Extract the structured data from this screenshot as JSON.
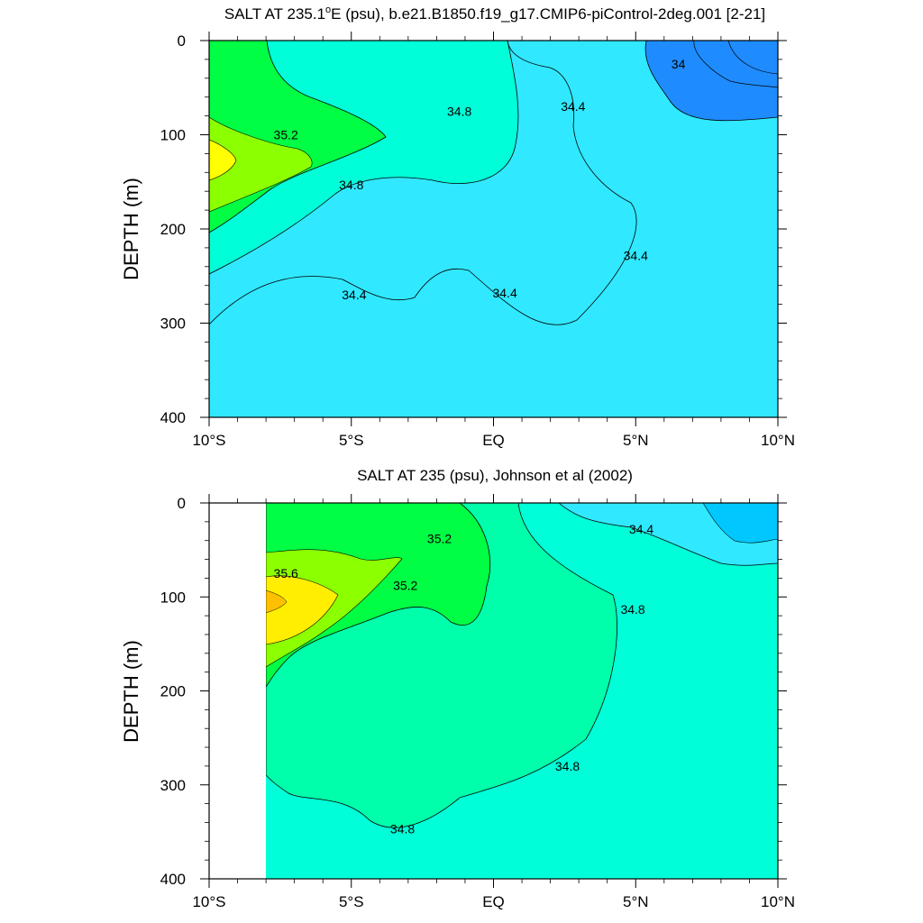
{
  "chart_data": [
    {
      "type": "contour",
      "title": "SALT AT 235.1°E (psu), b.e21.B1850.f19_g17.CMIP6-piControl-2deg.001 [2-21]",
      "title_main": "SALT AT 235.1",
      "title_degree": "o",
      "title_rest": "E (psu), b.e21.B1850.f19_g17.CMIP6-piControl-2deg.001 [2-21]",
      "ylabel": "DEPTH (m)",
      "xlabel": "",
      "xlim": [
        -10,
        10
      ],
      "ylim": [
        0,
        400
      ],
      "y_inverted": true,
      "xticks": [
        -10,
        -5,
        0,
        5,
        10
      ],
      "xtick_labels": [
        "10°S",
        "5°S",
        "EQ",
        "5°N",
        "10°N"
      ],
      "yticks": [
        0,
        100,
        200,
        300,
        400
      ],
      "ytick_labels": [
        "0",
        "100",
        "200",
        "300",
        "400"
      ],
      "data_start_lat": -10,
      "levels": [
        {
          "value": 34.0,
          "color": "#1e8cff"
        },
        {
          "value": 34.4,
          "color": "#30e8ff"
        },
        {
          "value": 34.8,
          "color": "#00ffd8"
        },
        {
          "value": 35.2,
          "color": "#00ff44"
        }
      ],
      "contour_labels": [
        {
          "text": "35.2",
          "lat": -7.3,
          "depth": 100
        },
        {
          "text": "34.8",
          "lat": -1.2,
          "depth": 75
        },
        {
          "text": "34.8",
          "lat": -5.0,
          "depth": 153
        },
        {
          "text": "34.4",
          "lat": 2.8,
          "depth": 70
        },
        {
          "text": "34.4",
          "lat": 5.0,
          "depth": 228
        },
        {
          "text": "34.4",
          "lat": -4.9,
          "depth": 270
        },
        {
          "text": "34.4",
          "lat": 0.4,
          "depth": 268
        },
        {
          "text": "34",
          "lat": 6.5,
          "depth": 25
        }
      ]
    },
    {
      "type": "contour",
      "title": "SALT AT 235 (psu), Johnson et al (2002)",
      "ylabel": "DEPTH (m)",
      "xlabel": "",
      "xlim": [
        -10,
        10
      ],
      "ylim": [
        0,
        400
      ],
      "y_inverted": true,
      "xticks": [
        -10,
        -5,
        0,
        5,
        10
      ],
      "xtick_labels": [
        "10°S",
        "5°S",
        "EQ",
        "5°N",
        "10°N"
      ],
      "yticks": [
        0,
        100,
        200,
        300,
        400
      ],
      "ytick_labels": [
        "0",
        "100",
        "200",
        "300",
        "400"
      ],
      "data_start_lat": -8,
      "levels": [
        {
          "value": 34.4,
          "color": "#30e8ff"
        },
        {
          "value": 34.8,
          "color": "#00ffd8"
        },
        {
          "value": 35.2,
          "color": "#00ff44"
        },
        {
          "value": 35.6,
          "color": "#ffff00"
        }
      ],
      "contour_labels": [
        {
          "text": "35.2",
          "lat": -1.9,
          "depth": 38
        },
        {
          "text": "35.6",
          "lat": -7.3,
          "depth": 75
        },
        {
          "text": "35.2",
          "lat": -3.1,
          "depth": 88
        },
        {
          "text": "34.4",
          "lat": 5.2,
          "depth": 28
        },
        {
          "text": "34.8",
          "lat": 4.9,
          "depth": 113
        },
        {
          "text": "34.8",
          "lat": 2.6,
          "depth": 280
        },
        {
          "text": "34.8",
          "lat": -3.2,
          "depth": 347
        }
      ]
    }
  ]
}
